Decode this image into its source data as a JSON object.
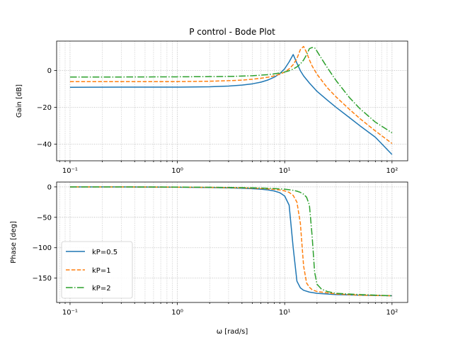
{
  "chart_data": [
    {
      "type": "line",
      "title": "P control - Bode Plot",
      "xlabel": "",
      "ylabel": "Gain [dB]",
      "xscale": "log",
      "xlim": [
        0.075,
        140
      ],
      "ylim": [
        -49,
        16
      ],
      "grid": true,
      "x_ticks": [
        "10⁻¹",
        "10⁰",
        "10¹",
        "10²"
      ],
      "y_ticks": [
        0,
        -20,
        -40
      ],
      "series": [
        {
          "name": "kP=0.5",
          "color": "#1f77b4",
          "linestyle": "solid",
          "x": [
            0.1,
            0.3,
            1,
            2,
            3,
            4,
            5,
            6,
            7,
            8,
            9,
            10,
            11,
            12,
            13,
            14,
            15,
            17,
            20,
            25,
            30,
            40,
            50,
            70,
            100
          ],
          "y": [
            -9.1,
            -9.0,
            -9.0,
            -8.8,
            -8.4,
            -7.9,
            -7.2,
            -6.3,
            -5.1,
            -3.6,
            -1.7,
            1.0,
            4.7,
            8.7,
            4.0,
            -0.1,
            -2.9,
            -6.8,
            -11.3,
            -16.1,
            -19.9,
            -25.5,
            -29.9,
            -36.2,
            -45.6
          ]
        },
        {
          "name": "kP=1",
          "color": "#ff7f0e",
          "linestyle": "dashed",
          "x": [
            0.1,
            0.3,
            1,
            2,
            3,
            4,
            5,
            6,
            7,
            8,
            9,
            10,
            11,
            12,
            13,
            14,
            15,
            16,
            17,
            18,
            20,
            25,
            30,
            40,
            50,
            70,
            100
          ],
          "y": [
            -6.0,
            -6.0,
            -6.0,
            -5.8,
            -5.5,
            -5.2,
            -4.7,
            -4.2,
            -3.6,
            -2.9,
            -2.0,
            -0.8,
            0.9,
            3.2,
            6.5,
            11.4,
            13.1,
            9.8,
            5.8,
            2.5,
            -2.0,
            -9.4,
            -14.2,
            -21.0,
            -26.0,
            -32.8,
            -39.6
          ]
        },
        {
          "name": "kP=2",
          "color": "#2ca02c",
          "linestyle": "dashdot",
          "x": [
            0.1,
            0.3,
            1,
            2,
            3,
            4,
            5,
            6,
            7,
            8,
            9,
            10,
            11,
            12,
            13,
            14,
            15,
            16,
            17,
            18,
            19,
            20,
            22,
            25,
            30,
            40,
            50,
            70,
            100
          ],
          "y": [
            -3.5,
            -3.5,
            -3.4,
            -3.3,
            -3.2,
            -3.0,
            -2.8,
            -2.5,
            -2.2,
            -1.8,
            -1.3,
            -0.8,
            -0.1,
            0.8,
            2.0,
            3.6,
            5.7,
            8.6,
            11.9,
            12.5,
            12.4,
            10.5,
            6.6,
            1.5,
            -5.3,
            -14.6,
            -20.6,
            -28.0,
            -33.8
          ]
        }
      ]
    },
    {
      "type": "line",
      "title": "",
      "xlabel": "ω [rad/s]",
      "ylabel": "Phase [deg]",
      "xscale": "log",
      "xlim": [
        0.075,
        140
      ],
      "ylim": [
        -190,
        8
      ],
      "grid": true,
      "legend_position": "lower-left",
      "x_ticks": [
        "10⁻¹",
        "10⁰",
        "10¹",
        "10²"
      ],
      "y_ticks": [
        0,
        -50,
        -100,
        -150
      ],
      "series": [
        {
          "name": "kP=0.5",
          "color": "#1f77b4",
          "linestyle": "solid",
          "x": [
            0.1,
            0.3,
            1,
            2,
            3,
            4,
            5,
            6,
            7,
            8,
            9,
            10,
            11,
            12,
            13,
            14,
            15,
            17,
            20,
            30,
            50,
            100
          ],
          "y": [
            0,
            0,
            -0.5,
            -1,
            -1.6,
            -2.2,
            -2.9,
            -3.8,
            -5,
            -6.7,
            -9.5,
            -15,
            -30,
            -100,
            -155,
            -166,
            -170,
            -173,
            -175,
            -177,
            -178,
            -179
          ]
        },
        {
          "name": "kP=1",
          "color": "#ff7f0e",
          "linestyle": "dashed",
          "x": [
            0.1,
            0.3,
            1,
            2,
            3,
            4,
            5,
            6,
            7,
            8,
            9,
            10,
            11,
            12,
            13,
            14,
            15,
            16,
            17,
            18,
            20,
            30,
            50,
            100
          ],
          "y": [
            0,
            0,
            -0.4,
            -0.8,
            -1.2,
            -1.6,
            -2.1,
            -2.6,
            -3.2,
            -4,
            -5,
            -6.5,
            -9,
            -14,
            -25,
            -60,
            -130,
            -158,
            -165,
            -169,
            -172,
            -176,
            -178,
            -179
          ]
        },
        {
          "name": "kP=2",
          "color": "#2ca02c",
          "linestyle": "dashdot",
          "x": [
            0.1,
            0.3,
            1,
            2,
            3,
            4,
            5,
            6,
            7,
            8,
            9,
            10,
            11,
            12,
            13,
            14,
            15,
            16,
            17,
            18,
            19,
            20,
            22,
            25,
            30,
            50,
            100
          ],
          "y": [
            0,
            0,
            -0.3,
            -0.6,
            -0.9,
            -1.2,
            -1.5,
            -1.9,
            -2.3,
            -2.7,
            -3.2,
            -3.8,
            -4.6,
            -5.6,
            -7,
            -9,
            -12,
            -17,
            -30,
            -80,
            -140,
            -160,
            -168,
            -172,
            -175,
            -177,
            -179
          ]
        }
      ]
    }
  ]
}
